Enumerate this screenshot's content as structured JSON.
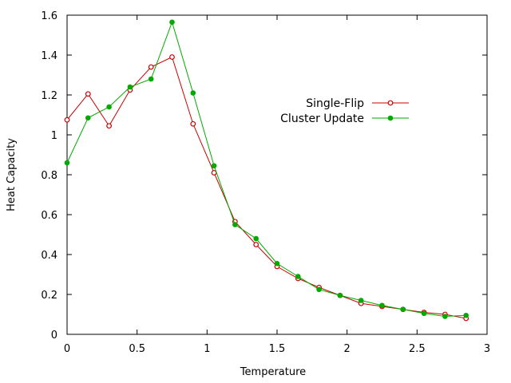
{
  "chart_data": {
    "type": "line",
    "xlabel": "Temperature",
    "ylabel": "Heat Capacity",
    "xlim": [
      0,
      3
    ],
    "ylim": [
      0,
      1.6
    ],
    "xticks": [
      0,
      0.5,
      1,
      1.5,
      2,
      2.5,
      3
    ],
    "xtick_labels": [
      "0",
      "0.5",
      "1",
      "1.5",
      "2",
      "2.5",
      "3"
    ],
    "yticks": [
      0,
      0.2,
      0.4,
      0.6,
      0.8,
      1,
      1.2,
      1.4,
      1.6
    ],
    "ytick_labels": [
      "0",
      "0.2",
      "0.4",
      "0.6",
      "0.8",
      "1",
      "1.2",
      "1.4",
      "1.6"
    ],
    "grid": false,
    "legend_position": "right",
    "x": [
      0,
      0.15,
      0.3,
      0.45,
      0.6,
      0.75,
      0.9,
      1.05,
      1.2,
      1.35,
      1.5,
      1.65,
      1.8,
      1.95,
      2.1,
      2.25,
      2.4,
      2.55,
      2.7,
      2.85
    ],
    "series": [
      {
        "name": "Single-Flip",
        "color": "#cc0000",
        "marker": "open-circle",
        "values": [
          1.075,
          1.205,
          1.045,
          1.225,
          1.34,
          1.39,
          1.055,
          0.81,
          0.565,
          0.45,
          0.34,
          0.28,
          0.235,
          0.195,
          0.155,
          0.14,
          0.125,
          0.11,
          0.1,
          0.08
        ]
      },
      {
        "name": "Cluster Update",
        "color": "#00aa00",
        "marker": "filled-circle",
        "values": [
          0.86,
          1.085,
          1.14,
          1.24,
          1.28,
          1.565,
          1.21,
          0.845,
          0.55,
          0.48,
          0.355,
          0.29,
          0.225,
          0.195,
          0.17,
          0.145,
          0.125,
          0.105,
          0.09,
          0.095
        ]
      }
    ]
  }
}
